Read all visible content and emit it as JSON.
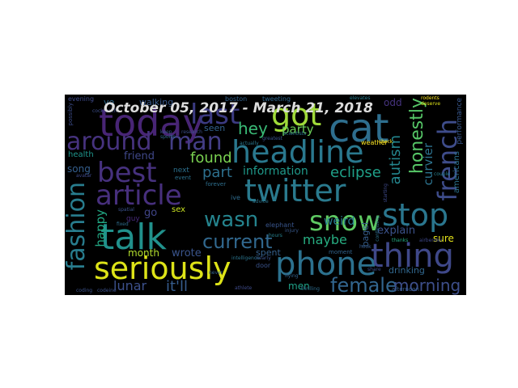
{
  "title": "October 05, 2017 - March 21, 2018",
  "words": [
    {
      "text": "today",
      "color": "#482575"
    },
    {
      "text": "last",
      "color": "#3b3a81"
    },
    {
      "text": "got",
      "color": "#a0da39"
    },
    {
      "text": "cat",
      "color": "#2e6e8e"
    },
    {
      "text": "around",
      "color": "#46327e"
    },
    {
      "text": "man",
      "color": "#433e85"
    },
    {
      "text": "headline",
      "color": "#2a788e"
    },
    {
      "text": "best",
      "color": "#46317e"
    },
    {
      "text": "article",
      "color": "#472f7d"
    },
    {
      "text": "twitter",
      "color": "#2a7a8e"
    },
    {
      "text": "french",
      "color": "#3e4c8a"
    },
    {
      "text": "honestly",
      "color": "#56c667"
    },
    {
      "text": "fashion",
      "color": "#287d8e"
    },
    {
      "text": "talk",
      "color": "#21918c"
    },
    {
      "text": "snow",
      "color": "#5ec962"
    },
    {
      "text": "stop",
      "color": "#2a768e"
    },
    {
      "text": "wasn",
      "color": "#25848e"
    },
    {
      "text": "current",
      "color": "#31688e"
    },
    {
      "text": "seriously",
      "color": "#dde318"
    },
    {
      "text": "phone",
      "color": "#2c718e"
    },
    {
      "text": "thing",
      "color": "#3f4889"
    },
    {
      "text": "female",
      "color": "#32658e"
    },
    {
      "text": "morning",
      "color": "#3d4e8a"
    },
    {
      "text": "hey",
      "color": "#3aba76"
    },
    {
      "text": "party",
      "color": "#6cce59"
    },
    {
      "text": "found",
      "color": "#7ad151"
    },
    {
      "text": "part",
      "color": "#2d708e"
    },
    {
      "text": "information",
      "color": "#1f998a"
    },
    {
      "text": "eclipse",
      "color": "#1fa088"
    },
    {
      "text": "autism",
      "color": "#24868e"
    },
    {
      "text": "curvier",
      "color": "#2c728e"
    },
    {
      "text": "weird",
      "color": "#287c8e"
    },
    {
      "text": "maybe",
      "color": "#27ad81"
    },
    {
      "text": "explain",
      "color": "#3b528b"
    },
    {
      "text": "sure",
      "color": "#e5e419"
    },
    {
      "text": "drinking",
      "color": "#31678e"
    },
    {
      "text": "lunar",
      "color": "#3c508b"
    },
    {
      "text": "it'll",
      "color": "#365c8d"
    },
    {
      "text": "men",
      "color": "#1fa187"
    },
    {
      "text": "spent",
      "color": "#35608d"
    },
    {
      "text": "wrote",
      "color": "#3a548c"
    },
    {
      "text": "month",
      "color": "#b2dd2d"
    },
    {
      "text": "go",
      "color": "#404588"
    },
    {
      "text": "happy",
      "color": "#22a884"
    },
    {
      "text": "song",
      "color": "#355f8d"
    },
    {
      "text": "friend",
      "color": "#3f4788"
    },
    {
      "text": "walking",
      "color": "#38598c"
    },
    {
      "text": "ve",
      "color": "#2f6b8e"
    },
    {
      "text": "odd",
      "color": "#46337f"
    },
    {
      "text": "seen",
      "color": "#33628d"
    },
    {
      "text": "health",
      "color": "#1f958b"
    },
    {
      "text": "americans",
      "color": "#2c738e"
    },
    {
      "text": "performance",
      "color": "#38578c"
    },
    {
      "text": "sex",
      "color": "#c8e020"
    },
    {
      "text": "guy",
      "color": "#472a7a"
    },
    {
      "text": "next",
      "color": "#2d718e"
    },
    {
      "text": "bagel",
      "color": "#355e8d"
    },
    {
      "text": "elephant",
      "color": "#39558c"
    },
    {
      "text": "boston",
      "color": "#33638d"
    },
    {
      "text": "evening",
      "color": "#3e4a89"
    },
    {
      "text": "tweeting",
      "color": "#31688e"
    },
    {
      "text": "weather",
      "color": "#fde725"
    },
    {
      "text": "ive",
      "color": "#2f6c8e"
    },
    {
      "text": "door",
      "color": "#3a538b"
    },
    {
      "text": "afternoon",
      "color": "#365d8d"
    },
    {
      "text": "moment",
      "color": "#32648e"
    },
    {
      "text": "thanks",
      "color": "#25ab82"
    },
    {
      "text": "possibly",
      "color": "#3d4d8a"
    },
    {
      "text": "cockroach",
      "color": "#3d4e8a"
    },
    {
      "text": "intelligence",
      "color": "#2b758e"
    },
    {
      "text": "forever",
      "color": "#2e6f8e"
    },
    {
      "text": "event",
      "color": "#2c728e"
    },
    {
      "text": "spatial",
      "color": "#3b518b"
    },
    {
      "text": "flying",
      "color": "#33638d"
    },
    {
      "text": "rodents",
      "color": "#fde725"
    },
    {
      "text": "deserve",
      "color": "#dde318"
    },
    {
      "text": "elevates",
      "color": "#287d8e"
    },
    {
      "text": "avatar",
      "color": "#3e4989"
    },
    {
      "text": "athlete",
      "color": "#3e4a89"
    },
    {
      "text": "airbender",
      "color": "#3f4788"
    },
    {
      "text": "hook",
      "color": "#365c8d"
    },
    {
      "text": "advice",
      "color": "#2b758e"
    },
    {
      "text": "nearly",
      "color": "#3b528b"
    },
    {
      "text": "share",
      "color": "#3c4f8a"
    },
    {
      "text": "thrilling",
      "color": "#2e6d8e"
    },
    {
      "text": "greatest",
      "color": "#3a548c"
    },
    {
      "text": "continuing",
      "color": "#2c718e"
    },
    {
      "text": "hours",
      "color": "#26828e"
    },
    {
      "text": "injury",
      "color": "#38588c"
    },
    {
      "text": "sports",
      "color": "#2f6c8e"
    },
    {
      "text": "actually",
      "color": "#2a788e"
    },
    {
      "text": "never",
      "color": "#32658e"
    },
    {
      "text": "research",
      "color": "#3c4f8a"
    },
    {
      "text": "coding",
      "color": "#3b528b"
    },
    {
      "text": "scientists",
      "color": "#2b748e"
    },
    {
      "text": "keep",
      "color": "#39568c"
    },
    {
      "text": "fixed",
      "color": "#2e6e8e"
    },
    {
      "text": "shock",
      "color": "#fde725"
    },
    {
      "text": "couple",
      "color": "#27808e"
    },
    {
      "text": "starting",
      "color": "#3e4989"
    },
    {
      "text": "codeine",
      "color": "#3b518b"
    }
  ]
}
